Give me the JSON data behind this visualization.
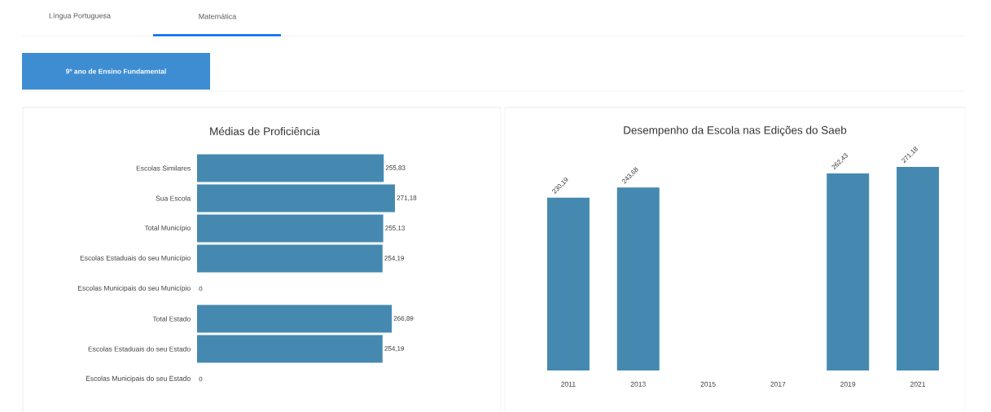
{
  "chart_data": [
    {
      "type": "bar",
      "orientation": "horizontal",
      "title": "Médias de Proficiência",
      "categories": [
        "Escolas Similares",
        "Sua Escola",
        "Total Município",
        "Escolas Estaduais do seu Município",
        "Escolas Municipais do seu Município",
        "Total Estado",
        "Escolas Estaduais do seu Estado",
        "Escolas Municipais do seu Estado"
      ],
      "values": [
        255.83,
        271.18,
        255.13,
        254.19,
        0,
        266.89,
        254.19,
        0
      ],
      "value_labels": [
        "255,83",
        "271,18",
        "255,13",
        "254,19",
        "0",
        "266,89",
        "254,19",
        "0"
      ],
      "color": "#4589b0",
      "annotations": [
        "Língua Portuguesa",
        "Matemática",
        "9º ano de Ensino Fundamental"
      ]
    },
    {
      "type": "bar",
      "title": "Desempenho da Escola nas Edições do Saeb",
      "categories": [
        "2011",
        "2013",
        "2015",
        "2017",
        "2019",
        "2021"
      ],
      "values": [
        230.19,
        243.68,
        null,
        null,
        262.43,
        271.18
      ],
      "value_labels": [
        "230,19",
        "243,68",
        null,
        null,
        "262,43",
        "271,18"
      ],
      "color": "#4589b0"
    }
  ]
}
